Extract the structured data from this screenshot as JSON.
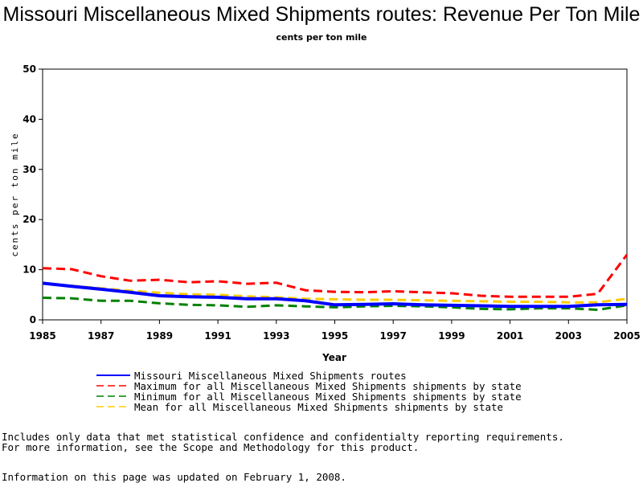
{
  "chart_data": {
    "type": "line",
    "title": "Missouri Miscellaneous Mixed Shipments routes: Revenue Per Ton Mile",
    "subtitle": "cents per ton mile",
    "xlabel": "Year",
    "ylabel": "cents per ton mile",
    "xlim": [
      1985,
      2005
    ],
    "ylim": [
      0,
      50
    ],
    "x_ticks": [
      1985,
      1987,
      1989,
      1991,
      1993,
      1995,
      1997,
      1999,
      2001,
      2003,
      2005
    ],
    "y_ticks": [
      0,
      10,
      20,
      30,
      40,
      50
    ],
    "grid": false,
    "legend_position": "bottom",
    "x": [
      1985,
      1986,
      1987,
      1988,
      1989,
      1990,
      1991,
      1992,
      1993,
      1994,
      1995,
      1996,
      1997,
      1998,
      1999,
      2000,
      2001,
      2002,
      2003,
      2004,
      2005
    ],
    "series": [
      {
        "name": "Maximum for all Miscellaneous Mixed Shipments shipments by state",
        "color": "#ff0000",
        "style": "dashed",
        "values": [
          10.3,
          10.1,
          8.7,
          7.8,
          8.0,
          7.5,
          7.7,
          7.2,
          7.4,
          5.9,
          5.6,
          5.5,
          5.7,
          5.5,
          5.3,
          4.8,
          4.6,
          4.6,
          4.6,
          5.2,
          13.0
        ]
      },
      {
        "name": "Mean for all Miscellaneous Mixed Shipments shipments by state",
        "color": "#ffcc00",
        "style": "dashed",
        "values": [
          7.3,
          6.8,
          6.3,
          5.8,
          5.4,
          5.1,
          5.0,
          4.7,
          4.5,
          4.2,
          4.1,
          4.0,
          4.0,
          3.9,
          3.8,
          3.7,
          3.6,
          3.6,
          3.5,
          3.5,
          4.2
        ]
      },
      {
        "name": "Minimum for all Miscellaneous Mixed Shipments shipments by state",
        "color": "#008000",
        "style": "dashed",
        "values": [
          4.4,
          4.3,
          3.8,
          3.8,
          3.3,
          3.0,
          2.9,
          2.6,
          2.9,
          2.7,
          2.5,
          2.7,
          2.8,
          2.7,
          2.5,
          2.2,
          2.1,
          2.3,
          2.3,
          2.0,
          2.9
        ]
      },
      {
        "name": "Missouri Miscellaneous Mixed Shipments routes",
        "color": "#0000ff",
        "style": "solid",
        "values": [
          7.3,
          6.7,
          6.1,
          5.5,
          4.8,
          4.6,
          4.5,
          4.2,
          4.2,
          3.8,
          3.0,
          3.1,
          3.2,
          3.0,
          2.9,
          2.8,
          2.7,
          2.7,
          2.7,
          3.0,
          3.1
        ]
      }
    ],
    "legend_order": [
      3,
      0,
      2,
      1
    ]
  },
  "footnotes": {
    "line1": "Includes only data that met statistical confidence and confidentialty reporting requirements.",
    "line2": "For more information, see the Scope and Methodology for this product.",
    "line3": "Information on this page was updated on February 1, 2008."
  }
}
